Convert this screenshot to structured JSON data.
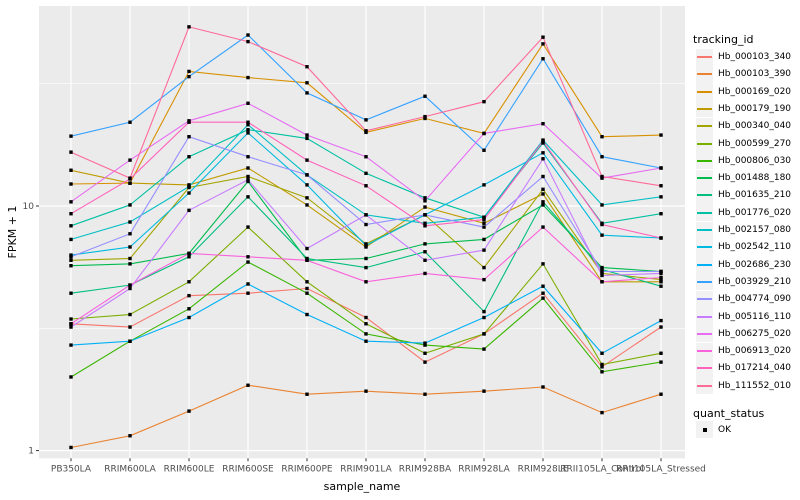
{
  "figure": {
    "panel_bg": "#EBEBEB",
    "grid_color": "#FFFFFF",
    "tick_color": "#333333",
    "axis_text_color": "#4D4D4D",
    "legend_key_bg": "#F2F2F2",
    "point_color": "#000000"
  },
  "axes": {
    "x_title": "sample_name",
    "y_title": "FPKM + 1",
    "y_tick_labels": [
      "10",
      "1"
    ]
  },
  "legend": {
    "tracking_title": "tracking_id",
    "quant_title": "quant_status",
    "quant_entries": [
      {
        "label": "OK",
        "marker": "black-square"
      }
    ]
  },
  "chart_data": {
    "type": "line",
    "title": "",
    "xlabel": "sample_name",
    "ylabel": "FPKM + 1",
    "x_type": "categorical",
    "y_scale": "log10",
    "y_ticks": [
      1,
      10
    ],
    "y_minor_ticks": [
      3.1623,
      31.623
    ],
    "ylim": [
      0.93,
      65
    ],
    "grid": true,
    "legend_position": "right",
    "point_marker": "black-square",
    "quant_status": "OK",
    "categories": [
      "PB350LA",
      "RRIM600LA",
      "RRIM600LE",
      "RRIM600SE",
      "RRIM600PE",
      "RRIM901LA",
      "RRIM928BA",
      "RRIM928LA",
      "RRIM928LE",
      "RRII105LA_Control",
      "RRII105LA_Stressed"
    ],
    "series": [
      {
        "name": "Hb_000103_340",
        "color": "#F8766D",
        "values": [
          3.3,
          3.2,
          4.3,
          4.4,
          4.6,
          3.5,
          2.3,
          3.0,
          4.4,
          2.2,
          3.2
        ]
      },
      {
        "name": "Hb_000103_390",
        "color": "#EA8331",
        "values": [
          1.03,
          1.15,
          1.45,
          1.85,
          1.7,
          1.75,
          1.7,
          1.75,
          1.82,
          1.43,
          1.7
        ]
      },
      {
        "name": "Hb_000169_020",
        "color": "#D89000",
        "values": [
          12.3,
          12.4,
          35.5,
          33.5,
          31.9,
          20.0,
          22.8,
          19.8,
          46.0,
          19.2,
          19.5
        ]
      },
      {
        "name": "Hb_000179_190",
        "color": "#C09B00",
        "values": [
          14.0,
          12.4,
          12.2,
          14.3,
          10.1,
          6.8,
          9.9,
          8.5,
          11.2,
          4.9,
          4.9
        ]
      },
      {
        "name": "Hb_000340_040",
        "color": "#A3A500",
        "values": [
          6.0,
          6.1,
          11.9,
          13.2,
          10.8,
          7.0,
          9.2,
          5.6,
          11.7,
          5.3,
          5.0
        ]
      },
      {
        "name": "Hb_000599_270",
        "color": "#7CAE00",
        "values": [
          3.45,
          3.6,
          4.9,
          8.2,
          4.9,
          3.3,
          2.5,
          3.0,
          5.8,
          2.25,
          2.5
        ]
      },
      {
        "name": "Hb_000806_030",
        "color": "#39B600",
        "values": [
          2.0,
          2.8,
          3.8,
          5.9,
          4.4,
          3.0,
          2.7,
          2.6,
          4.2,
          2.1,
          2.3
        ]
      },
      {
        "name": "Hb_001488_180",
        "color": "#00BB4E",
        "values": [
          5.7,
          5.8,
          6.4,
          12.6,
          6.0,
          6.1,
          7.0,
          7.3,
          10.1,
          5.6,
          5.4
        ]
      },
      {
        "name": "Hb_001635_210",
        "color": "#00BF7D",
        "values": [
          4.4,
          4.75,
          6.2,
          10.9,
          6.1,
          5.6,
          6.5,
          3.7,
          10.4,
          5.5,
          4.7
        ]
      },
      {
        "name": "Hb_001776_020",
        "color": "#00C1A3",
        "values": [
          8.3,
          10.1,
          15.9,
          20.5,
          18.9,
          13.6,
          10.8,
          9.0,
          18.1,
          8.5,
          9.3
        ]
      },
      {
        "name": "Hb_002157_080",
        "color": "#00BFC4",
        "values": [
          7.3,
          8.6,
          12.0,
          21.5,
          13.4,
          9.2,
          8.5,
          9.0,
          18.6,
          10.1,
          10.9
        ]
      },
      {
        "name": "Hb_002542_110",
        "color": "#00BAE0",
        "values": [
          6.3,
          6.8,
          11.3,
          19.9,
          12.2,
          6.9,
          9.2,
          12.2,
          16.5,
          7.6,
          7.4
        ]
      },
      {
        "name": "Hb_002686_230",
        "color": "#00B0F6",
        "values": [
          2.7,
          2.8,
          3.5,
          4.8,
          3.6,
          2.8,
          2.75,
          3.5,
          4.7,
          2.5,
          3.4
        ]
      },
      {
        "name": "Hb_003929_210",
        "color": "#35A2FF",
        "values": [
          19.3,
          22.0,
          33.8,
          50.0,
          29.0,
          22.5,
          28.1,
          16.9,
          40.0,
          15.9,
          14.3
        ]
      },
      {
        "name": "Hb_004774_090",
        "color": "#9590FF",
        "values": [
          6.2,
          7.7,
          19.2,
          15.9,
          13.4,
          8.4,
          9.2,
          8.2,
          13.2,
          5.4,
          5.4
        ]
      },
      {
        "name": "Hb_005116_110",
        "color": "#C77CFF",
        "values": [
          3.2,
          4.6,
          9.6,
          12.8,
          6.7,
          9.2,
          6.0,
          6.6,
          15.6,
          5.2,
          5.3
        ]
      },
      {
        "name": "Hb_006275_020",
        "color": "#E76BF3",
        "values": [
          10.4,
          15.4,
          22.3,
          26.3,
          19.5,
          15.9,
          10.5,
          19.8,
          21.7,
          13.0,
          14.3
        ]
      },
      {
        "name": "Hb_006913_020",
        "color": "#FA62DB",
        "values": [
          3.3,
          4.75,
          6.4,
          6.2,
          6.0,
          4.9,
          5.3,
          5.0,
          8.2,
          4.9,
          5.1
        ]
      },
      {
        "name": "Hb_017214_040",
        "color": "#FF62BC",
        "values": [
          9.3,
          12.9,
          22.0,
          22.0,
          15.4,
          12.1,
          8.3,
          8.8,
          18.4,
          8.4,
          7.4
        ]
      },
      {
        "name": "Hb_111552_010",
        "color": "#FF6A98",
        "values": [
          16.6,
          13.0,
          54.0,
          47.0,
          37.1,
          20.3,
          23.2,
          26.7,
          49.0,
          13.2,
          12.1
        ]
      }
    ]
  }
}
